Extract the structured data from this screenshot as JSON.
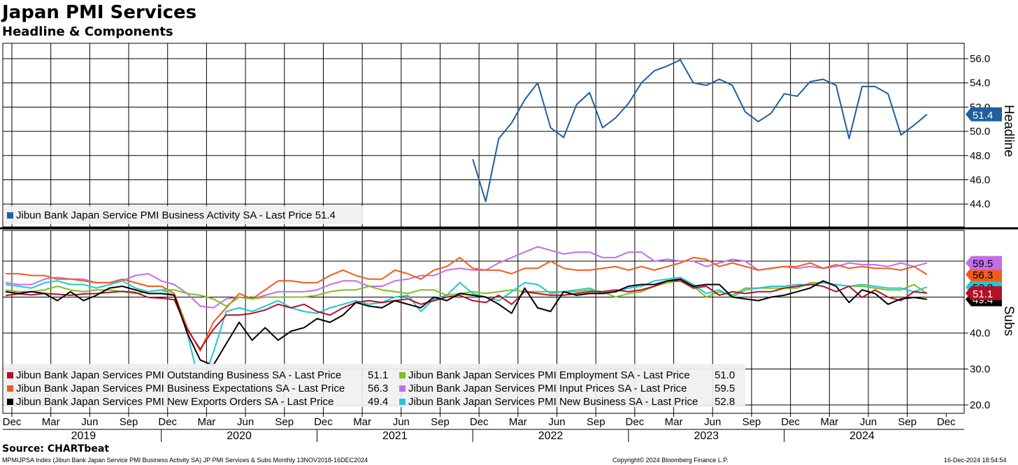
{
  "title": "Japan PMI Services",
  "subtitle": "Headline & Components",
  "source": "Source: CHARTbeat",
  "footer": {
    "left": "MPMIJPSA Index (Jibun Bank Japan Service PMI Business Activity SA) JP PMI Services & Subs  Monthly 13NOV2018-16DEC2024",
    "center": "Copyright© 2024 Bloomberg Finance L.P.",
    "right": "16-Dec-2024 18:54:54"
  },
  "chart_data": [
    {
      "type": "line",
      "panel": "top",
      "ylabel": "Headline",
      "ylim": [
        42.2,
        57.2
      ],
      "yticks": [
        44,
        46,
        48,
        50,
        52,
        54,
        56
      ],
      "ytick_labels": [
        "44.0",
        "46.0",
        "48.0",
        "50.0",
        "52.0",
        "54.0",
        "56.0"
      ],
      "x_start": "2018-12",
      "series": [
        {
          "name": "Jibun Bank Japan Service PMI Business Activity SA",
          "legend": "Jibun Bank Japan Service PMI Business Activity SA - Last Price 51.4",
          "color": "#1f5f9e",
          "last_label": "51.4",
          "start_index": 36,
          "values": [
            47.7,
            44.2,
            49.4,
            50.7,
            52.6,
            54.0,
            50.3,
            49.5,
            52.2,
            53.2,
            50.3,
            51.1,
            52.3,
            54.0,
            55.0,
            55.4,
            55.9,
            54.0,
            53.8,
            54.3,
            53.8,
            51.6,
            50.8,
            51.5,
            53.1,
            52.9,
            54.1,
            54.3,
            53.8,
            49.4,
            53.7,
            53.7,
            53.1,
            49.7,
            50.5,
            51.4
          ]
        }
      ]
    },
    {
      "type": "line",
      "panel": "bottom",
      "ylabel": "Subs",
      "ylim": [
        18,
        70
      ],
      "yticks": [
        20,
        30,
        40
      ],
      "ytick_labels": [
        "20.0",
        "30.0",
        "40.0"
      ],
      "x_start": "2018-12",
      "x_tick_labels": [
        "Dec",
        "Mar",
        "Jun",
        "Sep",
        "Dec",
        "Mar",
        "Jun",
        "Sep",
        "Dec",
        "Mar",
        "Jun",
        "Sep",
        "Dec",
        "Mar",
        "Jun",
        "Sep",
        "Dec",
        "Mar",
        "Jun",
        "Sep",
        "Dec",
        "Mar",
        "Jun",
        "Sep",
        "Dec"
      ],
      "year_labels": [
        "2019",
        "2020",
        "2021",
        "2022",
        "2023",
        "2024"
      ],
      "series": [
        {
          "name": "Jibun Bank Japan Services PMI Outstanding Business SA",
          "legend_name": "Jibun Bank Japan Services PMI Outstanding Business SA - Last Price",
          "legend_value": "51.1",
          "color": "#b3102a",
          "last_label": "51.1",
          "values": [
            50.4,
            50.9,
            50.6,
            51.0,
            50.8,
            50.5,
            50.9,
            51.0,
            51.3,
            51.6,
            51.3,
            49.9,
            49.7,
            49.3,
            41.0,
            35.5,
            41.0,
            45.0,
            45.0,
            45.5,
            46.4,
            48.0,
            47.0,
            48.0,
            46.0,
            45.0,
            47.0,
            48.5,
            49.0,
            48.5,
            49.0,
            49.5,
            48.0,
            49.0,
            50.0,
            50.5,
            49.0,
            48.5,
            50.5,
            48.0,
            51.5,
            51.0,
            50.5,
            50.5,
            51.0,
            51.5,
            51.5,
            52.0,
            51.5,
            52.0,
            53.0,
            54.5,
            54.5,
            52.5,
            53.0,
            50.5,
            51.5,
            51.0,
            51.5,
            51.5,
            52.5,
            53.0,
            53.5,
            53.0,
            51.5,
            53.0,
            49.9,
            52.0,
            50.0,
            49.0,
            51.5,
            51.1
          ]
        },
        {
          "name": "Jibun Bank Japan Services PMI Employment SA",
          "legend_name": "Jibun Bank Japan Services PMI Employment SA - Last Price",
          "legend_value": "51.0",
          "color": "#7cc11f",
          "last_label": "51.0",
          "values": [
            52.0,
            51.5,
            51.5,
            52.0,
            53.0,
            52.0,
            51.5,
            52.0,
            52.0,
            51.5,
            51.0,
            51.5,
            52.0,
            52.0,
            51.0,
            50.5,
            49.5,
            47.5,
            50.0,
            49.5,
            50.0,
            50.0,
            50.0,
            50.0,
            50.5,
            51.5,
            52.0,
            52.0,
            53.0,
            52.0,
            51.5,
            51.0,
            52.0,
            52.0,
            50.5,
            51.0,
            51.5,
            51.0,
            51.5,
            52.0,
            51.5,
            51.5,
            51.5,
            51.5,
            51.5,
            52.0,
            51.5,
            50.0,
            51.0,
            51.5,
            53.0,
            54.0,
            54.5,
            53.0,
            50.0,
            51.5,
            50.5,
            52.5,
            52.5,
            52.5,
            52.5,
            52.5,
            54.0,
            54.0,
            53.5,
            53.0,
            53.0,
            52.5,
            52.0,
            52.0,
            53.5,
            51.0
          ]
        },
        {
          "name": "Jibun Bank Japan Services PMI Business Expectations SA",
          "legend_name": "Jibun Bank Japan Services PMI Business Expectations SA - Last Price",
          "legend_value": "56.3",
          "color": "#f25c19",
          "last_label": "56.3",
          "values": [
            56.5,
            56.5,
            56.0,
            56.0,
            55.0,
            55.0,
            54.5,
            54.0,
            54.0,
            55.0,
            54.0,
            53.0,
            53.0,
            51.0,
            41.5,
            35.0,
            43.0,
            47.0,
            51.0,
            49.5,
            52.0,
            54.5,
            54.5,
            54.0,
            54.0,
            56.0,
            57.5,
            56.0,
            55.0,
            55.0,
            57.5,
            56.5,
            55.0,
            57.5,
            58.5,
            61.0,
            58.0,
            57.5,
            57.5,
            56.5,
            58.0,
            58.0,
            60.0,
            58.0,
            57.5,
            57.5,
            58.0,
            58.5,
            57.5,
            58.5,
            57.5,
            58.5,
            59.5,
            61.0,
            60.5,
            58.5,
            59.5,
            58.5,
            57.5,
            58.0,
            58.5,
            58.5,
            59.5,
            58.0,
            59.0,
            58.0,
            58.5,
            58.0,
            58.0,
            57.5,
            58.5,
            56.3
          ]
        },
        {
          "name": "Jibun Bank Japan Services PMI Input Prices SA",
          "legend_name": "Jibun Bank Japan Services PMI Input Prices SA - Last Price",
          "legend_value": "59.5",
          "color": "#c46ee8",
          "last_label": "59.5",
          "values": [
            54.0,
            53.5,
            53.5,
            55.0,
            55.5,
            55.0,
            55.0,
            54.0,
            54.0,
            54.5,
            56.0,
            56.5,
            54.5,
            53.5,
            51.0,
            47.5,
            47.0,
            49.5,
            50.0,
            49.5,
            50.5,
            51.5,
            51.5,
            51.5,
            52.0,
            53.5,
            54.5,
            54.5,
            53.0,
            53.0,
            54.5,
            55.0,
            56.0,
            56.0,
            57.5,
            58.0,
            57.5,
            57.5,
            59.5,
            61.0,
            62.5,
            64.0,
            63.0,
            62.0,
            62.5,
            62.5,
            61.0,
            61.0,
            62.5,
            62.5,
            60.0,
            60.5,
            60.0,
            60.0,
            58.5,
            59.5,
            60.5,
            60.0,
            57.5,
            58.0,
            58.5,
            58.0,
            58.5,
            58.0,
            58.5,
            59.5,
            59.0,
            59.0,
            58.5,
            59.5,
            58.5,
            59.5
          ]
        },
        {
          "name": "Jibun Bank Japan Services PMI New Exports Orders SA",
          "legend_name": "Jibun Bank Japan Services PMI New Exports Orders SA - Last Price",
          "legend_value": "49.4",
          "color": "#000000",
          "last_label": "49.4",
          "values": [
            51.5,
            51.0,
            51.5,
            51.0,
            49.0,
            51.5,
            49.0,
            50.5,
            52.5,
            53.0,
            52.0,
            51.0,
            51.0,
            50.5,
            40.0,
            32.5,
            31.0,
            37.0,
            43.0,
            38.0,
            41.5,
            38.0,
            40.5,
            41.5,
            44.0,
            43.0,
            45.0,
            48.5,
            47.5,
            47.0,
            49.0,
            48.0,
            47.0,
            50.0,
            49.0,
            51.0,
            50.5,
            50.0,
            48.0,
            45.5,
            52.5,
            47.0,
            46.0,
            51.5,
            50.5,
            51.0,
            51.0,
            51.5,
            53.0,
            53.5,
            53.5,
            54.5,
            55.0,
            53.0,
            53.5,
            53.5,
            50.0,
            49.5,
            49.0,
            50.0,
            50.5,
            51.5,
            52.5,
            54.5,
            53.0,
            48.5,
            52.0,
            51.0,
            48.0,
            49.5,
            49.9,
            49.4
          ]
        },
        {
          "name": "Jibun Bank Japan Services PMI New Business SA",
          "legend_name": "Jibun Bank Japan Services PMI New Business SA - Last Price",
          "legend_value": "52.8",
          "color": "#22c7d1",
          "last_label": "52.8",
          "values": [
            53.5,
            53.0,
            52.5,
            54.0,
            54.5,
            53.5,
            53.5,
            52.5,
            53.5,
            54.5,
            52.5,
            51.5,
            52.0,
            50.5,
            40.0,
            25.0,
            34.5,
            46.0,
            47.0,
            46.0,
            47.5,
            49.0,
            47.0,
            46.0,
            45.5,
            47.0,
            48.0,
            49.0,
            48.0,
            48.5,
            50.0,
            50.5,
            46.0,
            49.5,
            50.5,
            54.0,
            51.0,
            50.0,
            49.0,
            51.5,
            54.0,
            53.5,
            51.0,
            51.5,
            52.0,
            52.5,
            51.0,
            51.5,
            52.5,
            53.0,
            54.5,
            55.0,
            55.5,
            53.5,
            51.0,
            52.0,
            50.0,
            52.0,
            52.5,
            53.0,
            53.0,
            53.5,
            53.5,
            54.0,
            53.5,
            53.0,
            53.5,
            53.0,
            52.5,
            52.5,
            51.5,
            52.8
          ]
        }
      ]
    }
  ]
}
